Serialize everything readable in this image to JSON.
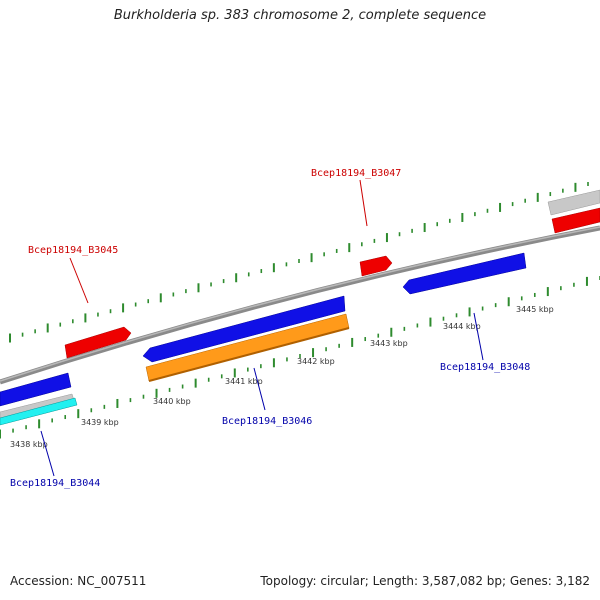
{
  "title": "Burkholderia sp. 383 chromosome 2, complete sequence",
  "footer": {
    "accession": "Accession: NC_007511",
    "summary": "Topology: circular; Length: 3,587,082 bp; Genes: 3,182"
  },
  "colors": {
    "forward_gene": "#ff0000",
    "reverse_gene": "#0000dd",
    "cds_highlight": "#ff8c00",
    "misc_feature": "#00e5e5",
    "backbone": "#808080",
    "tick": "#2e8b2e",
    "label_forward": "#cc0000",
    "label_reverse": "#0000aa"
  },
  "kbp_scale": {
    "labels": [
      "3438 kbp",
      "3439 kbp",
      "3440 kbp",
      "3441 kbp",
      "3442 kbp",
      "3443 kbp",
      "3444 kbp",
      "3445 kbp"
    ]
  },
  "genes": [
    {
      "label": "Bcep18194_B3044",
      "strand": "reverse"
    },
    {
      "label": "Bcep18194_B3045",
      "strand": "forward"
    },
    {
      "label": "Bcep18194_B3046",
      "strand": "reverse"
    },
    {
      "label": "Bcep18194_B3047",
      "strand": "forward"
    },
    {
      "label": "Bcep18194_B3048",
      "strand": "reverse"
    }
  ]
}
